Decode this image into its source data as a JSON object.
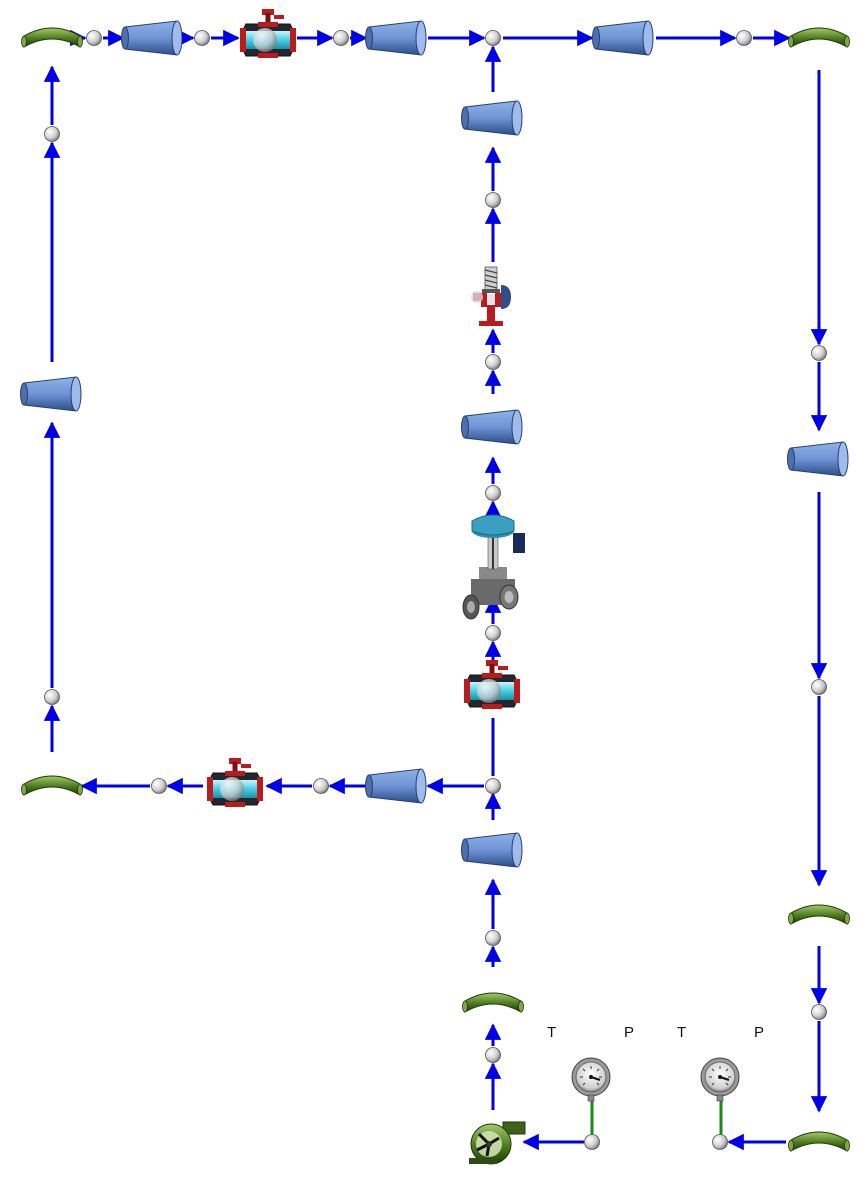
{
  "labels": {
    "gauge1_left": "T",
    "gauge1_right": "P",
    "gauge2_left": "T",
    "gauge2_right": "P"
  },
  "colors": {
    "flow_line": "#0000e6",
    "sensor_line": "#1a8a1a",
    "elbow": "#4e7a1e",
    "reducer": "#6f93d4",
    "valve_body": "#b81c1c",
    "valve_bore": "#47cde3",
    "actuator": "#3aa0c0",
    "node": "#d9d9d9"
  },
  "components": {
    "elbows": [
      "elbow-icon",
      "elbow-icon",
      "elbow-icon",
      "elbow-icon",
      "elbow-icon",
      "elbow-icon"
    ],
    "reducers": [
      "reducer-icon",
      "reducer-icon",
      "reducer-icon",
      "reducer-icon",
      "reducer-icon",
      "reducer-icon",
      "reducer-icon",
      "reducer-icon",
      "reducer-icon"
    ],
    "ball_valves": [
      "ball-valve-icon",
      "ball-valve-icon",
      "ball-valve-icon"
    ],
    "relief_valve": "relief-valve-icon",
    "control_valve": "control-valve-icon",
    "pump": "pump-icon",
    "gauges": [
      "pressure-gauge-icon",
      "pressure-gauge-icon"
    ]
  }
}
